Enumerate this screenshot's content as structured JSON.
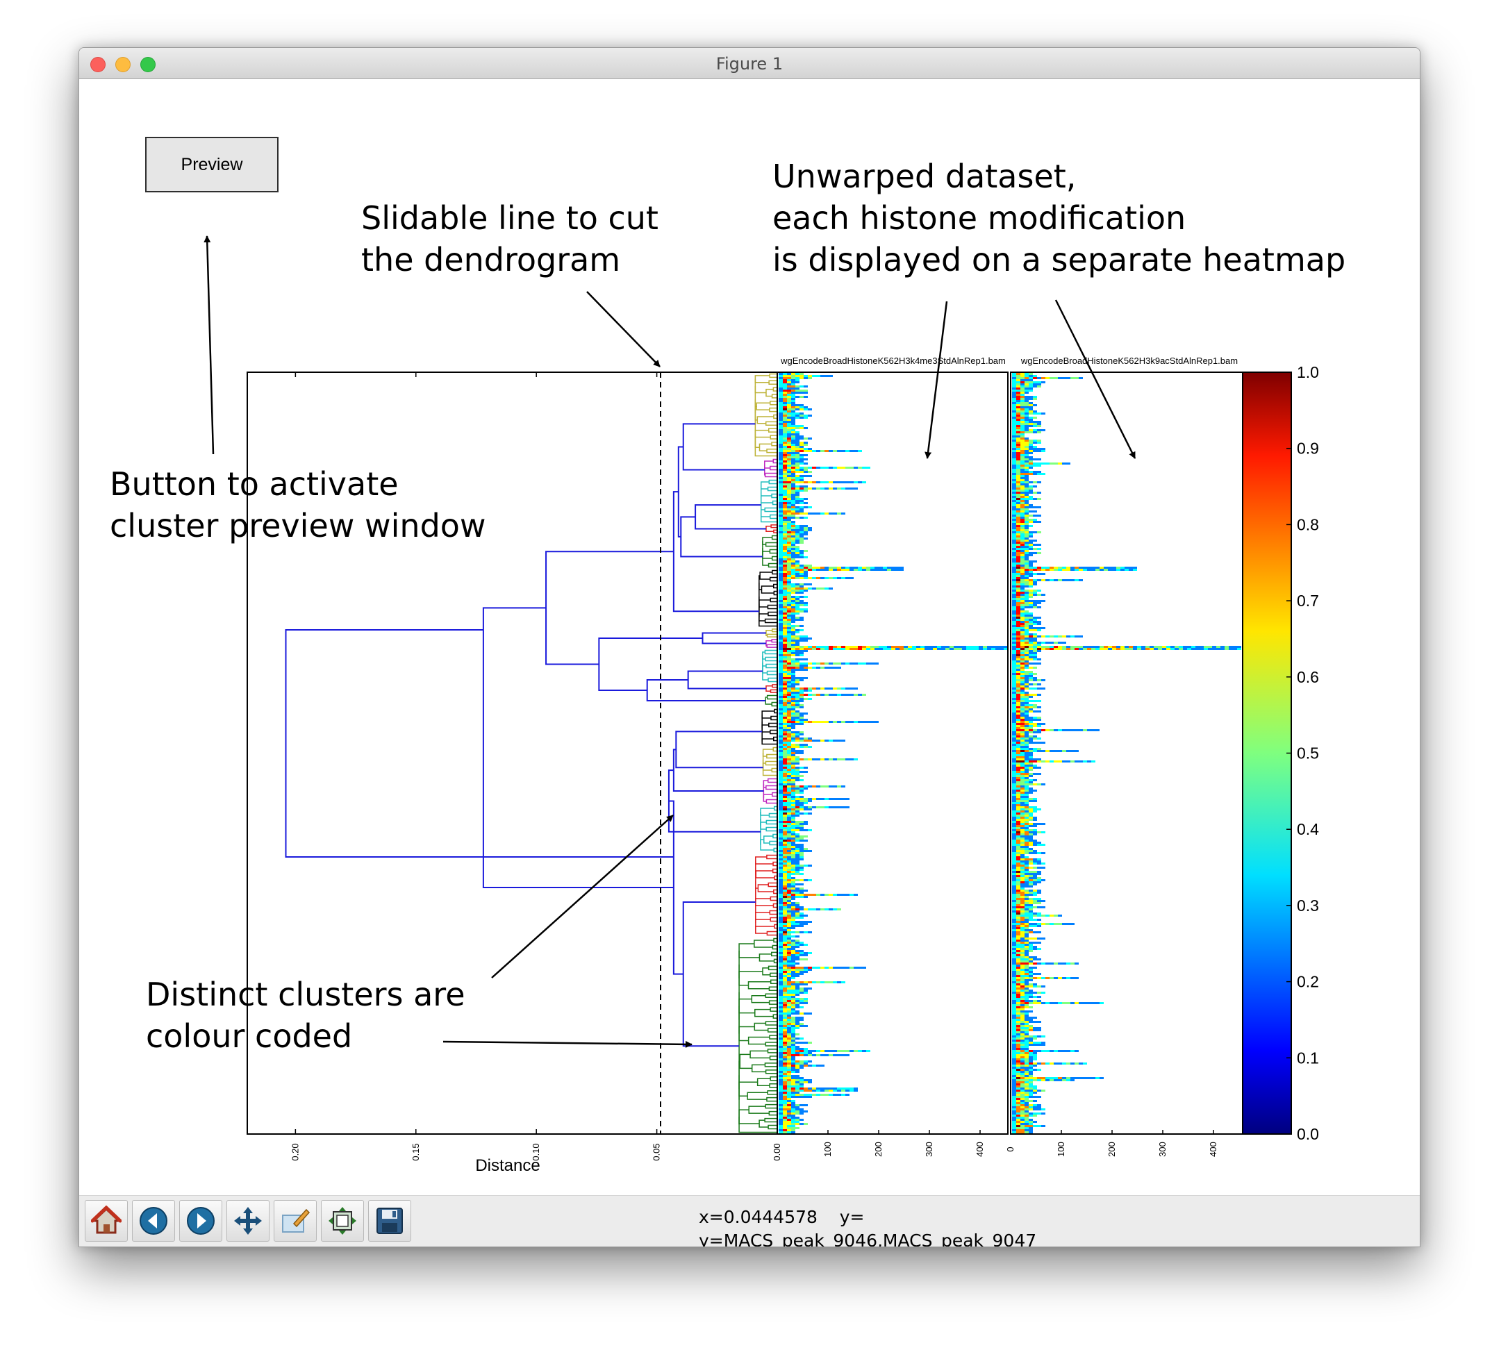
{
  "window": {
    "title": "Figure 1"
  },
  "preview_button": {
    "label": "Preview"
  },
  "annotations": {
    "slidable_line": [
      "Slidable line to cut",
      "the dendrogram"
    ],
    "unwarped": [
      "Unwarped dataset,",
      "each histone modification",
      "is displayed on a separate heatmap"
    ],
    "preview_window": [
      "Button to activate",
      "cluster preview window"
    ],
    "clusters": [
      "Distinct clusters are",
      "colour coded"
    ]
  },
  "dendrogram": {
    "xlabel": "Distance",
    "x_ticks": [
      "0.20",
      "0.15",
      "0.10",
      "0.05",
      "0.00"
    ],
    "cut_distance": 0.044,
    "cluster_colors": [
      "#bdb236",
      "#bf26bf",
      "#21bdbd",
      "#e02020",
      "#1a7a1a",
      "#000000",
      "#1a7a1a"
    ]
  },
  "heatmaps": [
    {
      "title": "wgEncodeBroadHistoneK562H3k4me3StdAlnRep1.bam",
      "x_ticks": [
        "100",
        "200",
        "300",
        "400"
      ]
    },
    {
      "title": "wgEncodeBroadHistoneK562H3k9acStdAlnRep1.bam",
      "x_ticks": [
        "0",
        "100",
        "200",
        "300",
        "400"
      ]
    }
  ],
  "colorbar": {
    "ticks": [
      "1.0",
      "0.9",
      "0.8",
      "0.7",
      "0.6",
      "0.5",
      "0.4",
      "0.3",
      "0.2",
      "0.1",
      "0.0"
    ],
    "colors": [
      "#00007f",
      "#0000ff",
      "#007fff",
      "#00ffff",
      "#7fff7f",
      "#ffff00",
      "#ff7f00",
      "#ff0000",
      "#7f0000"
    ]
  },
  "toolbar": {
    "tools": [
      "home-icon",
      "back-icon",
      "forward-icon",
      "pan-icon",
      "subplot-config-icon",
      "configure-icon",
      "save-icon"
    ],
    "coord_x": "x=0.0444578    y=",
    "coord_y": "y=MACS_peak_9046,MACS_peak_9047"
  }
}
